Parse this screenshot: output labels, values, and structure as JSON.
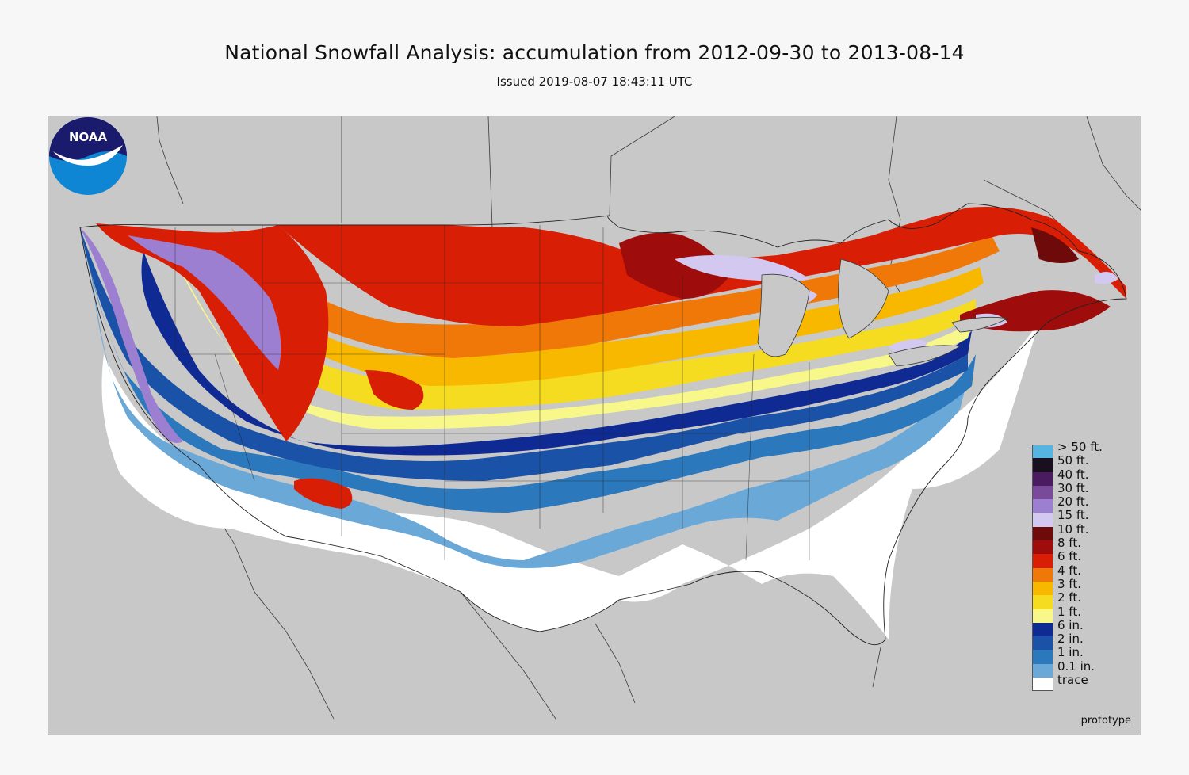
{
  "header": {
    "title": "National Snowfall Analysis: accumulation from 2012-09-30 to 2013-08-14",
    "issued": "Issued 2019-08-07 18:43:11 UTC"
  },
  "map": {
    "background_color": "#c8c8c8",
    "land_color": "#c8c8c8",
    "border_color": "#555555",
    "footer_note": "prototype",
    "logo": {
      "name": "noaa-logo",
      "text": "NOAA"
    }
  },
  "legend": {
    "items": [
      {
        "label": "> 50 ft.",
        "color": "#56b4e0"
      },
      {
        "label": "50 ft.",
        "color": "#1a0f1e"
      },
      {
        "label": "40 ft.",
        "color": "#4a1b5e"
      },
      {
        "label": "30 ft.",
        "color": "#7a4a9a"
      },
      {
        "label": "20 ft.",
        "color": "#9c7fd0"
      },
      {
        "label": "15 ft.",
        "color": "#d2c8f0"
      },
      {
        "label": "10 ft.",
        "color": "#6e0a0a"
      },
      {
        "label": "8 ft.",
        "color": "#9e0c0c"
      },
      {
        "label": "6 ft.",
        "color": "#d81e05"
      },
      {
        "label": "4 ft.",
        "color": "#f07808"
      },
      {
        "label": "3 ft.",
        "color": "#f8b800"
      },
      {
        "label": "2 ft.",
        "color": "#f5dc20"
      },
      {
        "label": "1 ft.",
        "color": "#f8f88a"
      },
      {
        "label": "6 in.",
        "color": "#102a94"
      },
      {
        "label": "2 in.",
        "color": "#1a52a8"
      },
      {
        "label": "1 in.",
        "color": "#2c78bc"
      },
      {
        "label": "0.1 in.",
        "color": "#6aa8d8"
      },
      {
        "label": "trace",
        "color": "#ffffff"
      }
    ]
  }
}
